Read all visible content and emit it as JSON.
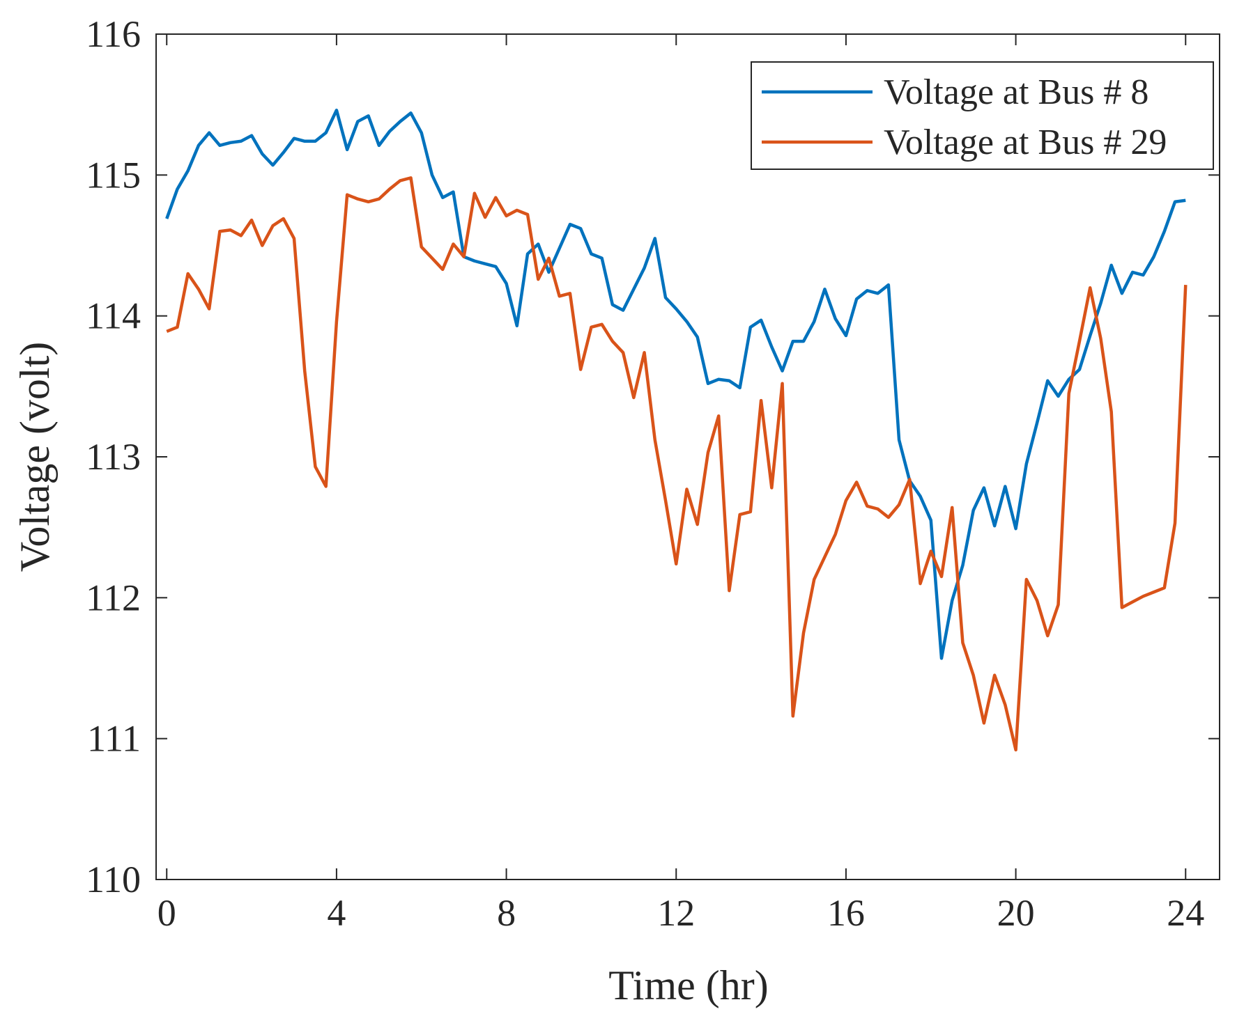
{
  "chart_data": {
    "type": "line",
    "xlabel": "Time (hr)",
    "ylabel": "Voltage (volt)",
    "x": [
      0,
      0.25,
      0.5,
      0.75,
      1,
      1.25,
      1.5,
      1.75,
      2,
      2.25,
      2.5,
      2.75,
      3,
      3.25,
      3.5,
      3.75,
      4,
      4.25,
      4.5,
      4.75,
      5,
      5.25,
      5.5,
      5.75,
      6,
      6.25,
      6.5,
      6.75,
      7,
      7.25,
      7.5,
      7.75,
      8,
      8.25,
      8.5,
      8.75,
      9,
      9.25,
      9.5,
      9.75,
      10,
      10.25,
      10.5,
      10.75,
      11,
      11.25,
      11.5,
      11.75,
      12,
      12.25,
      12.5,
      12.75,
      13,
      13.25,
      13.5,
      13.75,
      14,
      14.25,
      14.5,
      14.75,
      15,
      15.25,
      15.5,
      15.75,
      16,
      16.25,
      16.5,
      16.75,
      17,
      17.25,
      17.5,
      17.75,
      18,
      18.25,
      18.5,
      18.75,
      19,
      19.25,
      19.5,
      19.75,
      20,
      20.25,
      20.5,
      20.75,
      21,
      21.25,
      21.5,
      21.75,
      22,
      22.25,
      22.5,
      22.75,
      23,
      23.25,
      23.5,
      23.75,
      24
    ],
    "series": [
      {
        "name": "Voltage at Bus # 8",
        "color": "#0072BD",
        "values": [
          114.69,
          114.9,
          115.03,
          115.21,
          115.3,
          115.21,
          115.23,
          115.24,
          115.28,
          115.15,
          115.07,
          115.16,
          115.26,
          115.24,
          115.24,
          115.3,
          115.46,
          115.18,
          115.38,
          115.42,
          115.21,
          115.31,
          115.38,
          115.44,
          115.3,
          115.0,
          114.84,
          114.88,
          114.42,
          114.39,
          114.37,
          114.35,
          114.23,
          113.93,
          114.44,
          114.51,
          114.31,
          114.48,
          114.65,
          114.62,
          114.44,
          114.41,
          114.08,
          114.04,
          114.19,
          114.34,
          114.55,
          114.13,
          114.05,
          113.96,
          113.85,
          113.52,
          113.55,
          113.54,
          113.49,
          113.92,
          113.97,
          113.78,
          113.61,
          113.82,
          113.82,
          113.96,
          114.19,
          113.98,
          113.86,
          114.12,
          114.18,
          114.16,
          114.22,
          113.12,
          112.83,
          112.72,
          112.55,
          111.57,
          111.98,
          112.23,
          112.62,
          112.78,
          112.51,
          112.79,
          112.49,
          112.95,
          113.24,
          113.54,
          113.43,
          113.55,
          113.62,
          113.86,
          114.09,
          114.36,
          114.16,
          114.31,
          114.29,
          114.42,
          114.6,
          114.81,
          114.82
        ]
      },
      {
        "name": "Voltage at Bus # 29",
        "color": "#D95319",
        "values": [
          113.89,
          113.92,
          114.3,
          114.19,
          114.05,
          114.6,
          114.61,
          114.57,
          114.68,
          114.5,
          114.64,
          114.69,
          114.55,
          113.61,
          112.93,
          112.79,
          113.96,
          114.86,
          114.83,
          114.81,
          114.83,
          114.9,
          114.96,
          114.98,
          114.49,
          114.41,
          114.33,
          114.51,
          114.42,
          114.87,
          114.7,
          114.84,
          114.71,
          114.75,
          114.72,
          114.26,
          114.41,
          114.14,
          114.16,
          113.62,
          113.92,
          113.94,
          113.82,
          113.74,
          113.42,
          113.74,
          113.12,
          112.69,
          112.24,
          112.77,
          112.52,
          113.03,
          113.29,
          112.05,
          112.59,
          112.61,
          113.4,
          112.78,
          113.52,
          111.16,
          111.75,
          112.13,
          112.29,
          112.45,
          112.69,
          112.82,
          112.65,
          112.63,
          112.57,
          112.66,
          112.84,
          112.1,
          112.33,
          112.15,
          112.64,
          111.68,
          111.45,
          111.11,
          111.45,
          111.24,
          110.92,
          112.13,
          111.98,
          111.73,
          111.95,
          113.45,
          113.82,
          114.2,
          113.84,
          113.32,
          111.93,
          111.97,
          112.01,
          112.04,
          112.07,
          112.53,
          114.22
        ]
      }
    ],
    "xlim": [
      -0.25,
      24.8
    ],
    "ylim": [
      110,
      116
    ],
    "xticks": [
      0,
      4,
      8,
      12,
      16,
      20,
      24
    ],
    "yticks": [
      110,
      111,
      112,
      113,
      114,
      115,
      116
    ],
    "legend": "top-right",
    "grid": false
  }
}
